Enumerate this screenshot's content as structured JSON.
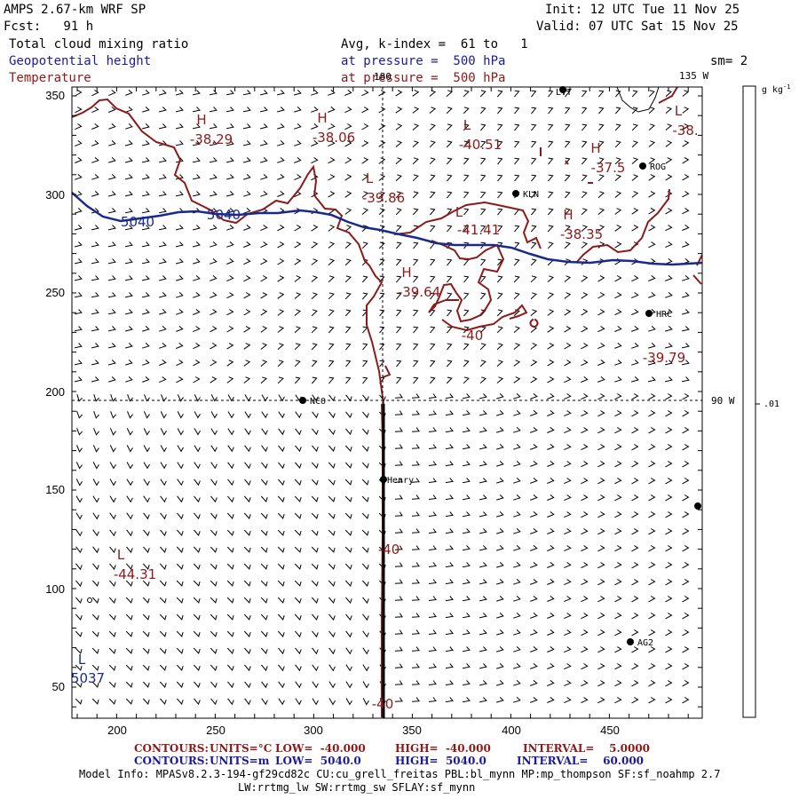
{
  "header": {
    "model": "AMPS 2.67-km WRF SP",
    "init": "Init: 12 UTC Tue 11 Nov 25",
    "fcst": "Fcst:   91 h",
    "valid": "Valid: 07 UTC Sat 15 Nov 25",
    "field1": "Total cloud mixing ratio",
    "field2": "Geopotential height",
    "field3": "Temperature",
    "avg": "Avg, k-index =  61 to   1",
    "pressure1": "at pressure =  500 hPa",
    "pressure2": "at pressure =  500 hPa",
    "sm": "sm= 2"
  },
  "colors": {
    "temperature": "#8b1a1a",
    "height": "#1a2a8a",
    "text_blue": "#1a1a9a"
  },
  "map": {
    "x_ticks": [
      "200",
      "250",
      "300",
      "350",
      "400",
      "450"
    ],
    "y_ticks": [
      "350",
      "300",
      "250",
      "200",
      "150",
      "100",
      "50"
    ],
    "lon_180": "180",
    "lon_135": "135 W",
    "lon_90": "90 W",
    "stations": [
      {
        "name": "LVT"
      },
      {
        "name": "ROG"
      },
      {
        "name": "KLN"
      },
      {
        "name": "HRC"
      },
      {
        "name": "NCO"
      },
      {
        "name": "Henry"
      },
      {
        "name": "AG2"
      },
      {
        "name": ""
      }
    ],
    "temp_labels": [
      {
        "hl": "H",
        "val": "-38.29"
      },
      {
        "hl": "H",
        "val": "-38.06"
      },
      {
        "hl": "L",
        "val": "-40.51"
      },
      {
        "hl": "L",
        "val": "-38."
      },
      {
        "hl": "H",
        "val": "-37.5"
      },
      {
        "hl": "L",
        "val": "-39.86"
      },
      {
        "hl": "L",
        "val": "-41.41"
      },
      {
        "hl": "H",
        "val": "-38.35"
      },
      {
        "hl": "H",
        "val": "-39.64"
      },
      {
        "hl": "",
        "val": "-39.79"
      },
      {
        "hl": "L",
        "val": "-44.31"
      },
      {
        "hl": "",
        "val": "-40"
      },
      {
        "hl": "",
        "val": "-40"
      },
      {
        "hl": "",
        "val": "-40"
      }
    ],
    "height_labels": [
      {
        "val": "5040"
      },
      {
        "val": "5040"
      },
      {
        "hl": "L",
        "val": "5037"
      }
    ]
  },
  "colorbar": {
    "unit_label": "g kg",
    "unit_exp": "-1",
    "value": ".01"
  },
  "footer": {
    "c1_label": "CONTOURS:",
    "c1_units": "UNITS=°C",
    "c1_low": "LOW=  -40.000",
    "c1_high": "HIGH=  -40.000",
    "c1_interval": "INTERVAL=    5.0000",
    "c2_label": "CONTOURS:",
    "c2_units": "UNITS=m",
    "c2_low": "LOW=  5040.0",
    "c2_high": "HIGH=  5040.0",
    "c2_interval": "INTERVAL=    60.000",
    "model_info": "Model Info: MPASv8.2.3-194-gf29cd82c CU:cu_grell_freitas PBL:bl_mynn MP:mp_thompson SF:sf_noahmp 2.7",
    "model_info2": "LW:rrtmg_lw SW:rrtmg_sw SFLAY:sf_mynn"
  }
}
